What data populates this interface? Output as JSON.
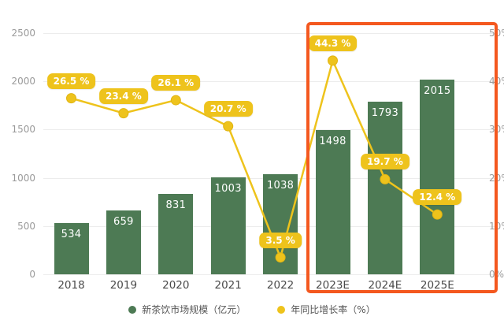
{
  "chart_data": {
    "type": "combo-bar-line",
    "categories": [
      "2018",
      "2019",
      "2020",
      "2021",
      "2022",
      "2023E",
      "2024E",
      "2025E"
    ],
    "series": [
      {
        "name": "新茶饮市场规模（亿元）",
        "type": "bar",
        "color": "#4d7a54",
        "values": [
          534,
          659,
          831,
          1003,
          1038,
          1498,
          1793,
          2015
        ],
        "value_labels": [
          "534",
          "659",
          "831",
          "1003",
          "1038",
          "1498",
          "1793",
          "2015"
        ],
        "label_color": "#ffffff"
      },
      {
        "name": "年同比增长率（%）",
        "type": "line",
        "color": "#eec31c",
        "values": [
          26.5,
          23.4,
          26.1,
          20.7,
          3.5,
          44.3,
          19.7,
          12.4
        ],
        "value_labels": [
          "26.5 %",
          "23.4 %",
          "26.1 %",
          "20.7 %",
          "3.5 %",
          "44.3 %",
          "19.7 %",
          "12.4 %"
        ],
        "label_bg": "#eec31c",
        "label_text_color": "#ffffff"
      }
    ],
    "left_axis": {
      "min": 0,
      "max": 2500,
      "ticks": [
        0,
        500,
        1000,
        1500,
        2000,
        2500
      ],
      "tick_labels": [
        "0",
        "500",
        "1000",
        "1500",
        "2000",
        "2500"
      ]
    },
    "right_axis": {
      "min": 0,
      "max": 50,
      "tick_labels": [
        "0%",
        "10%",
        "20%",
        "30%",
        "40%",
        "50%"
      ]
    },
    "grid": true,
    "legend_position": "bottom",
    "highlight_box": {
      "from_category": "2023E",
      "to_category": "2025E",
      "color": "#f4581f"
    },
    "layout_hints": {
      "line_plotted_percents": [
        36.5,
        33.4,
        36.1,
        30.7,
        3.5,
        44.3,
        19.7,
        12.4
      ]
    }
  },
  "legend": {
    "items": [
      {
        "label": "新茶饮市场规模（亿元）",
        "color": "#4d7a54"
      },
      {
        "label": "年同比增长率（%）",
        "color": "#eec31c"
      }
    ]
  }
}
